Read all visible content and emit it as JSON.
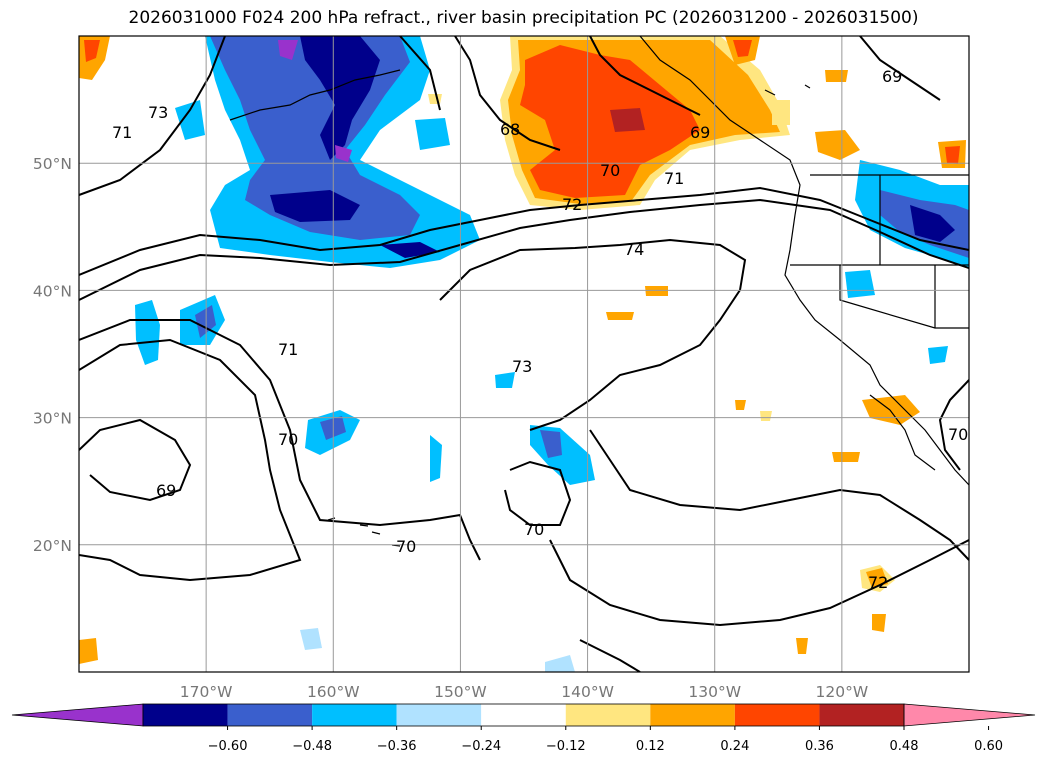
{
  "title": "2026031000 F024 200 hPa refract., river basin precipitation PC (2026031200 - 2026031500)",
  "map": {
    "lon_range": [
      -180,
      -110
    ],
    "lat_range": [
      10,
      60
    ],
    "gridlines": true,
    "lat_ticks": [
      {
        "value": 50,
        "label": "50°N"
      },
      {
        "value": 40,
        "label": "40°N"
      },
      {
        "value": 30,
        "label": "30°N"
      },
      {
        "value": 20,
        "label": "20°N"
      }
    ],
    "lon_ticks": [
      {
        "value": -170,
        "label": "170°W"
      },
      {
        "value": -160,
        "label": "160°W"
      },
      {
        "value": -150,
        "label": "150°W"
      },
      {
        "value": -140,
        "label": "140°W"
      },
      {
        "value": -130,
        "label": "130°W"
      },
      {
        "value": -120,
        "label": "120°W"
      }
    ]
  },
  "contour_labels": [
    "73",
    "71",
    "74",
    "73",
    "71",
    "70",
    "69",
    "70",
    "70",
    "68",
    "69",
    "70",
    "71",
    "72",
    "69",
    "72",
    "70"
  ],
  "colorbar": {
    "colors": [
      "#9932CC",
      "#00008B",
      "#3A5FCD",
      "#00BFFF",
      "#B0E2FF",
      "#FFFFFF",
      "#FFE680",
      "#FFA500",
      "#FF4500",
      "#B22222",
      "#FF88AA"
    ],
    "tick_labels": [
      "−0.60",
      "−0.48",
      "−0.36",
      "−0.24",
      "−0.12",
      "0.12",
      "0.24",
      "0.36",
      "0.48",
      "0.60"
    ]
  }
}
